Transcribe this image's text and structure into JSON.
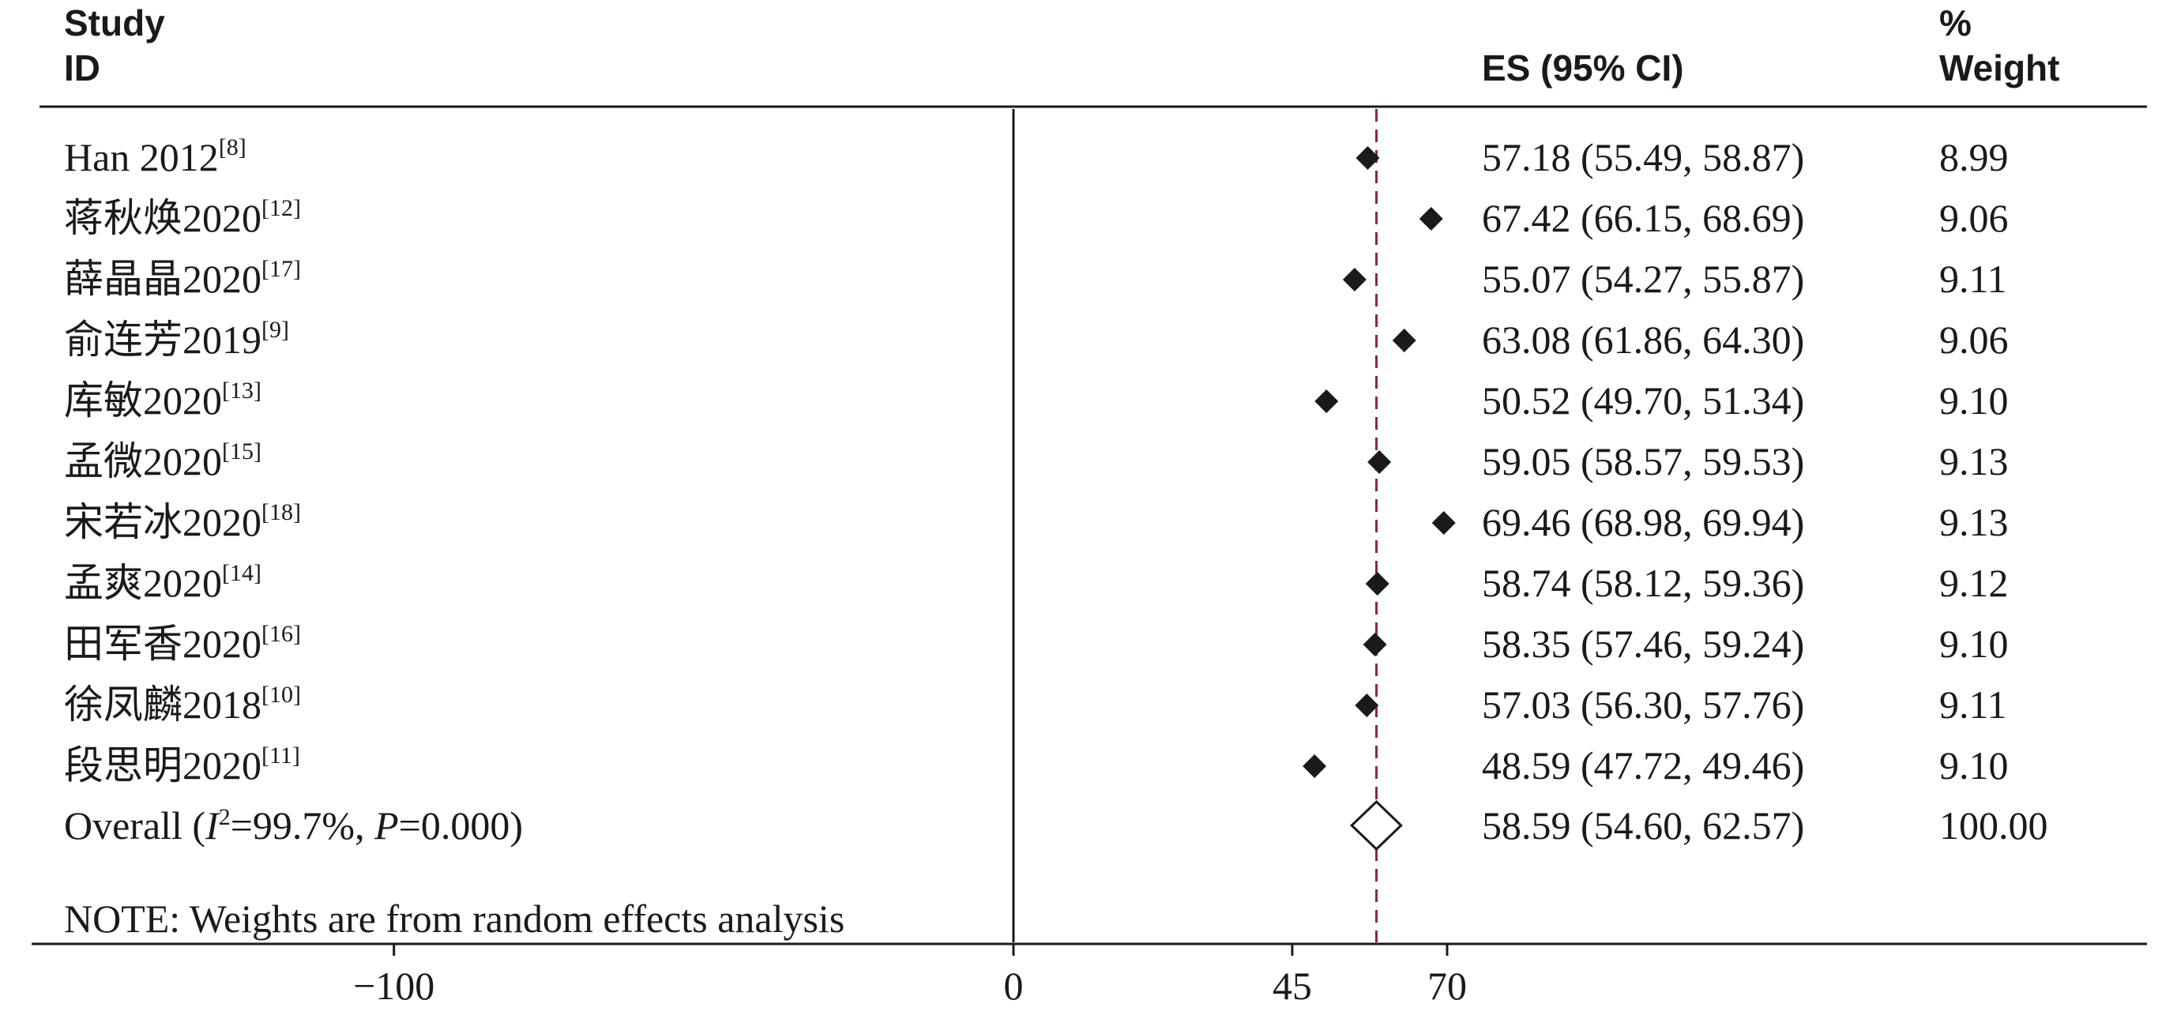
{
  "header": {
    "study_l1": "Study",
    "study_l2": "ID",
    "es": "ES (95% CI)",
    "weight_l1": "%",
    "weight_l2": "Weight"
  },
  "chart_data": {
    "type": "forest",
    "studies": [
      {
        "name": "Han 2012",
        "ref": "[8]",
        "es": 57.18,
        "lo": 55.49,
        "hi": 58.87,
        "es_text": "57.18 (55.49, 58.87)",
        "weight": "8.99"
      },
      {
        "name": "蒋秋焕2020",
        "ref": "[12]",
        "es": 67.42,
        "lo": 66.15,
        "hi": 68.69,
        "es_text": "67.42 (66.15, 68.69)",
        "weight": "9.06"
      },
      {
        "name": "薛晶晶2020",
        "ref": "[17]",
        "es": 55.07,
        "lo": 54.27,
        "hi": 55.87,
        "es_text": "55.07 (54.27, 55.87)",
        "weight": "9.11"
      },
      {
        "name": "俞连芳2019",
        "ref": "[9]",
        "es": 63.08,
        "lo": 61.86,
        "hi": 64.3,
        "es_text": "63.08 (61.86, 64.30)",
        "weight": "9.06"
      },
      {
        "name": "库敏2020",
        "ref": "[13]",
        "es": 50.52,
        "lo": 49.7,
        "hi": 51.34,
        "es_text": "50.52 (49.70, 51.34)",
        "weight": "9.10"
      },
      {
        "name": "孟微2020",
        "ref": "[15]",
        "es": 59.05,
        "lo": 58.57,
        "hi": 59.53,
        "es_text": "59.05 (58.57, 59.53)",
        "weight": "9.13"
      },
      {
        "name": "宋若冰2020",
        "ref": "[18]",
        "es": 69.46,
        "lo": 68.98,
        "hi": 69.94,
        "es_text": "69.46 (68.98, 69.94)",
        "weight": "9.13"
      },
      {
        "name": "孟爽2020",
        "ref": "[14]",
        "es": 58.74,
        "lo": 58.12,
        "hi": 59.36,
        "es_text": "58.74 (58.12, 59.36)",
        "weight": "9.12"
      },
      {
        "name": "田军香2020",
        "ref": "[16]",
        "es": 58.35,
        "lo": 57.46,
        "hi": 59.24,
        "es_text": "58.35 (57.46, 59.24)",
        "weight": "9.10"
      },
      {
        "name": "徐凤麟2018",
        "ref": "[10]",
        "es": 57.03,
        "lo": 56.3,
        "hi": 57.76,
        "es_text": "57.03 (56.30, 57.76)",
        "weight": "9.11"
      },
      {
        "name": "段思明2020",
        "ref": "[11]",
        "es": 48.59,
        "lo": 47.72,
        "hi": 49.46,
        "es_text": "48.59 (47.72, 49.46)",
        "weight": "9.10"
      }
    ],
    "overall": {
      "label_prefix": "Overall  (",
      "i_symbol": "I",
      "i_sup": "2",
      "i_value": "=99.7%, ",
      "p_symbol": "P",
      "p_value": "=0.000)",
      "es": 58.59,
      "lo": 54.6,
      "hi": 62.57,
      "es_text": "58.59 (54.60, 62.57)",
      "weight": "100.00"
    },
    "note": "NOTE: Weights are from random effects analysis",
    "x_ticks": [
      {
        "value": -100,
        "label": "−100"
      },
      {
        "value": 0,
        "label": "0"
      },
      {
        "value": 45,
        "label": "45"
      },
      {
        "value": 70,
        "label": "70"
      }
    ],
    "null_line": 0,
    "overall_line": 58.59,
    "colors": {
      "ink": "#1a1a1a",
      "overall_line": "#8b2a3a"
    }
  }
}
